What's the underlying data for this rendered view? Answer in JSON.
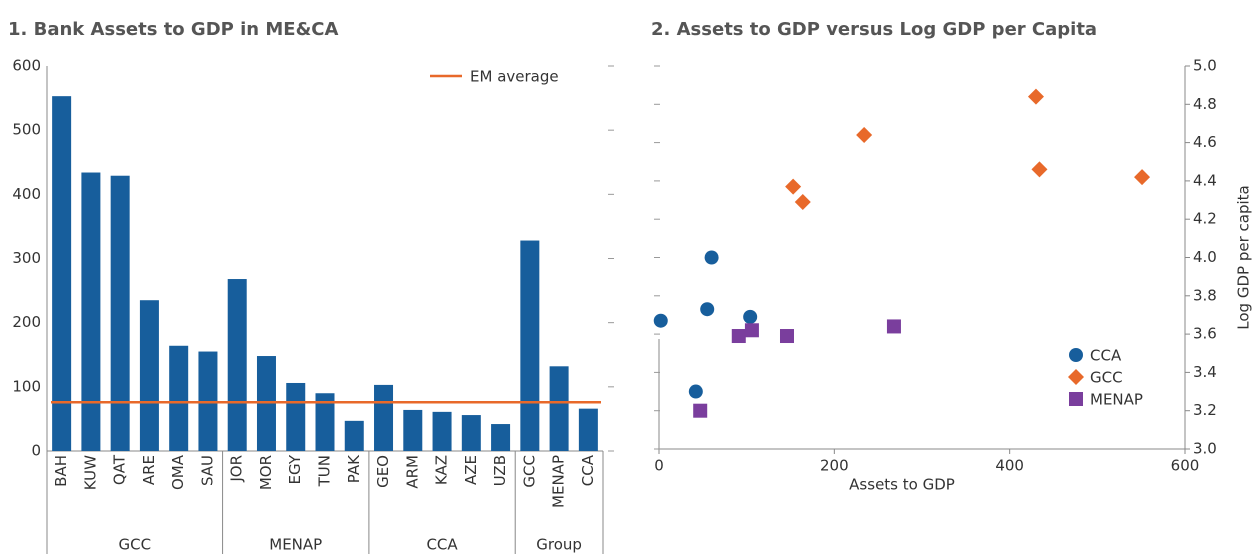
{
  "chart_data": [
    {
      "type": "bar",
      "title": "1. Bank Assets to GDP in ME&CA",
      "categories": [
        "BAH",
        "KUW",
        "QAT",
        "ARE",
        "OMA",
        "SAU",
        "JOR",
        "MOR",
        "EGY",
        "TUN",
        "PAK",
        "GEO",
        "ARM",
        "KAZ",
        "AZE",
        "UZB",
        "GCC",
        "MENAP",
        "CCA"
      ],
      "values": [
        553,
        434,
        429,
        235,
        164,
        155,
        268,
        148,
        106,
        90,
        47,
        103,
        64,
        61,
        56,
        42,
        328,
        132,
        66
      ],
      "color": "#175e9c",
      "groups": [
        {
          "name": "GCC",
          "count": 6
        },
        {
          "name": "MENAP",
          "count": 5
        },
        {
          "name": "CCA",
          "count": 5
        },
        {
          "name": "Group",
          "count": 3
        }
      ],
      "reference_lines": [
        {
          "name": "EM average",
          "value": 76,
          "color": "#e8692a"
        }
      ],
      "legend": "upper right",
      "ylim": [
        0,
        600
      ],
      "yticks": [
        0,
        100,
        200,
        300,
        400,
        500,
        600
      ]
    },
    {
      "type": "scatter",
      "title": "2. Assets to GDP versus Log GDP per Capita",
      "xlabel": "Assets to GDP",
      "y2label": "Log GDP per capita",
      "xlim": [
        0,
        600
      ],
      "xticks": [
        0,
        200,
        400,
        600
      ],
      "y2lim": [
        3.0,
        5.0
      ],
      "y2ticks": [
        {
          "value": 3.0,
          "label": "3.0"
        },
        3.2,
        3.4,
        3.6,
        3.8,
        {
          "value": 4.0,
          "label": "4.0"
        },
        4.2,
        4.4,
        4.6,
        4.8,
        {
          "value": 5.0,
          "label": "5.0"
        }
      ],
      "legend": "lower right",
      "series": [
        {
          "name": "CCA",
          "color": "#175e9c",
          "marker": "circle",
          "axis": "y2",
          "x": [
            2,
            42,
            55,
            60,
            104
          ],
          "values": [
            3.67,
            3.3,
            3.73,
            4.0,
            3.69
          ]
        },
        {
          "name": "GCC",
          "color": "#e8692a",
          "marker": "diamond",
          "axis": "y2",
          "x": [
            153,
            164,
            234,
            430,
            434,
            551
          ],
          "values": [
            4.37,
            4.29,
            4.64,
            4.84,
            4.46,
            4.42
          ]
        },
        {
          "name": "MENAP",
          "color": "#7a3e9d",
          "marker": "square",
          "axis": "y2",
          "x": [
            47,
            91,
            106,
            146,
            268
          ],
          "values": [
            3.2,
            3.59,
            3.62,
            3.59,
            3.64
          ]
        }
      ]
    }
  ]
}
